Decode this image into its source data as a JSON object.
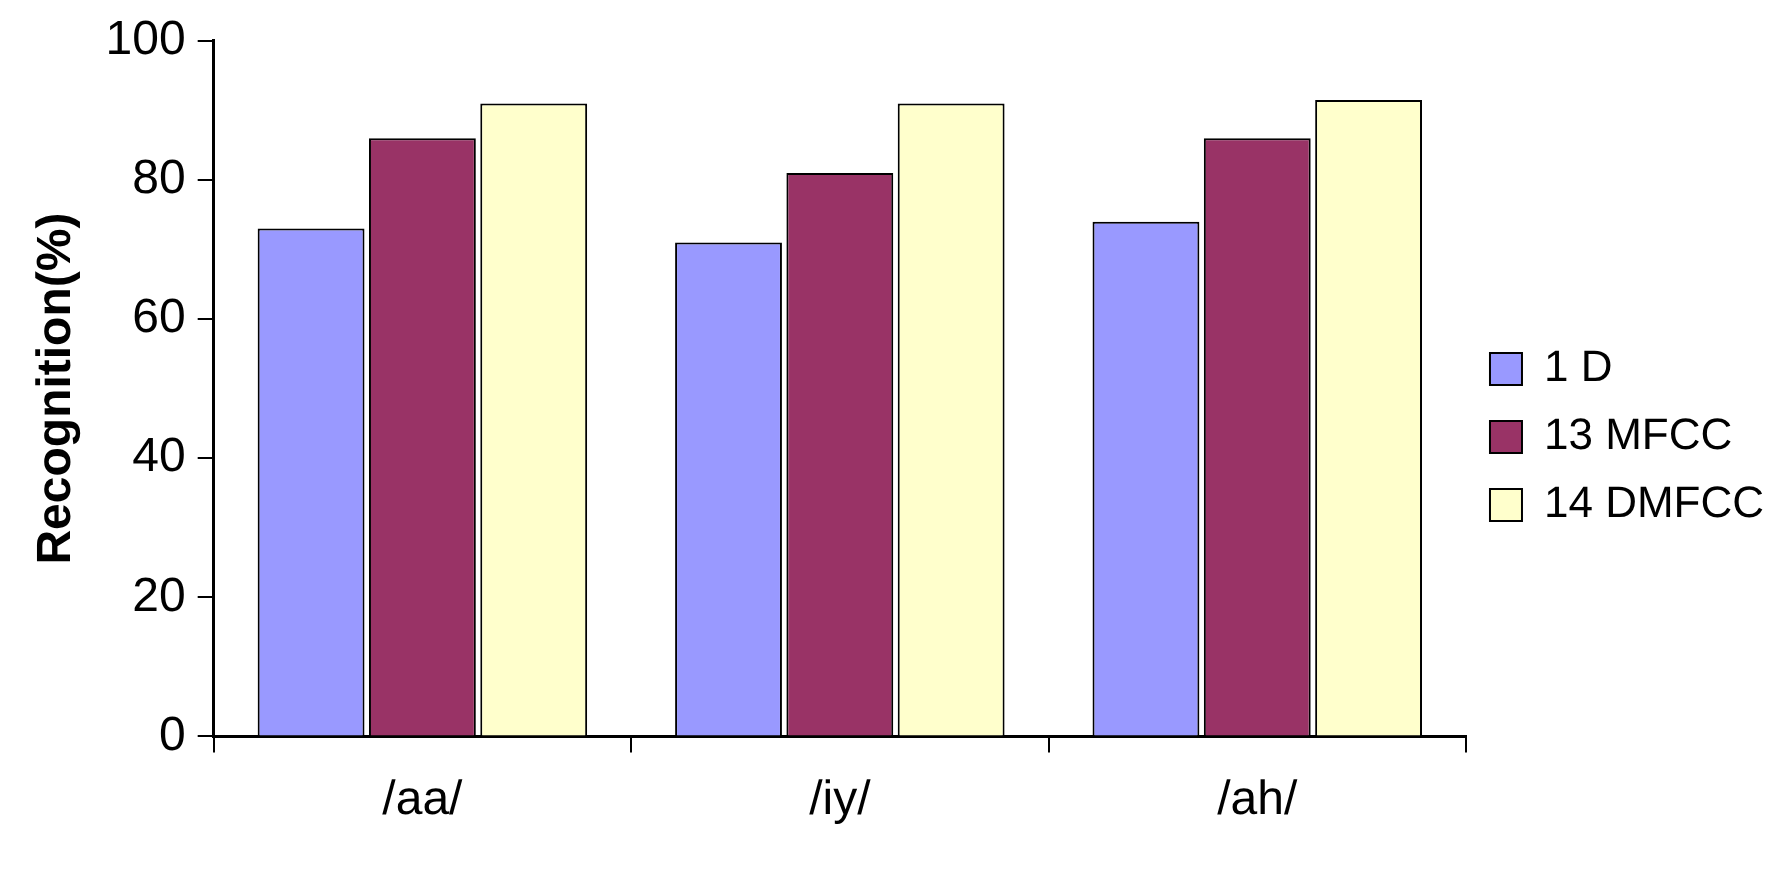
{
  "chart_data": {
    "type": "bar",
    "ylabel": "Recognition(%)",
    "categories": [
      "/aa/",
      "/iy/",
      "/ah/"
    ],
    "series": [
      {
        "name": "1 D",
        "color": "#9999ff",
        "values": [
          73,
          71,
          74
        ]
      },
      {
        "name": "13 MFCC",
        "color": "#993366",
        "values": [
          86,
          81,
          86
        ]
      },
      {
        "name": "14 DMFCC",
        "color": "#ffffcc",
        "values": [
          91,
          91,
          91.5
        ]
      }
    ],
    "ylim": [
      0,
      100
    ],
    "yticks": [
      0,
      20,
      40,
      60,
      80,
      100
    ],
    "grid": false,
    "legend": "right"
  }
}
